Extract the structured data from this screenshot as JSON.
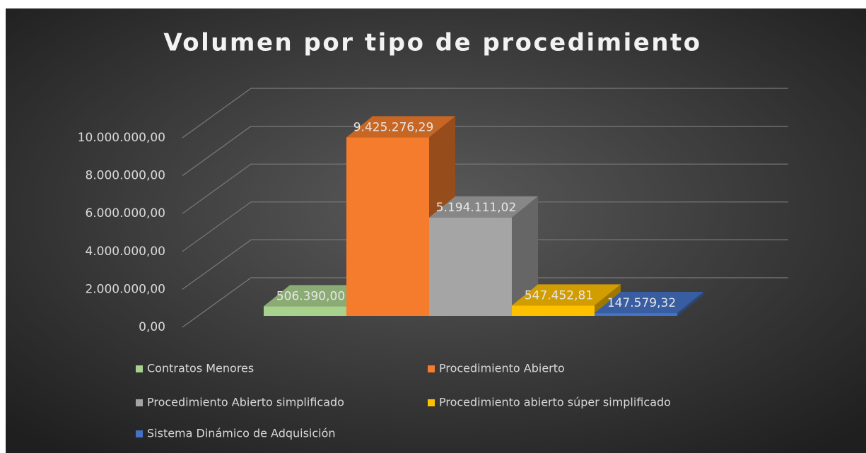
{
  "chart_data": {
    "type": "bar3d",
    "title": "Volumen por tipo de procedimiento",
    "series": [
      {
        "name": "Contratos Menores",
        "color": "#a9d18e",
        "values": [
          506390.0
        ],
        "value_labels": [
          "506.390,00"
        ]
      },
      {
        "name": "Procedimiento Abierto",
        "color": "#f47c2c",
        "values": [
          9425276.29
        ],
        "value_labels": [
          "9.425.276,29"
        ]
      },
      {
        "name": "Procedimiento Abierto simplificado",
        "color": "#a5a5a5",
        "values": [
          5194111.02
        ],
        "value_labels": [
          "5.194.111,02"
        ]
      },
      {
        "name": "Procedimiento abierto súper simplificado",
        "color": "#ffc000",
        "values": [
          547452.81
        ],
        "value_labels": [
          "547.452,81"
        ]
      },
      {
        "name": "Sistema Dinámico de Adquisición",
        "color": "#4472c4",
        "values": [
          147579.32
        ],
        "value_labels": [
          "147.579,32"
        ]
      }
    ],
    "ylim": [
      0,
      10000000
    ],
    "yticks": [
      {
        "value": 0,
        "label": "0,00"
      },
      {
        "value": 2000000,
        "label": "2.000.000,00"
      },
      {
        "value": 4000000,
        "label": "4.000.000,00"
      },
      {
        "value": 6000000,
        "label": "6.000.000,00"
      },
      {
        "value": 8000000,
        "label": "8.000.000,00"
      },
      {
        "value": 10000000,
        "label": "10.000.000,00"
      }
    ],
    "grid": true
  }
}
